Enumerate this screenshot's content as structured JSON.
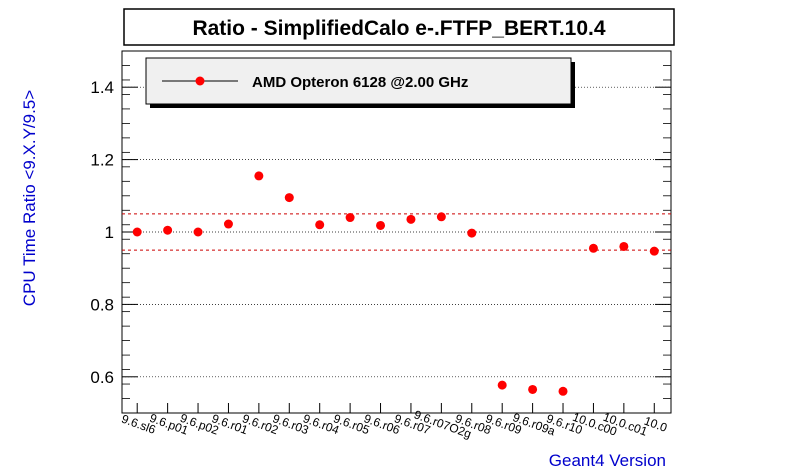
{
  "chart_data": {
    "type": "scatter",
    "title": "Ratio - SimplifiedCalo e-.FTFP_BERT.10.4",
    "xlabel": "Geant4 Version",
    "ylabel": "CPU Time Ratio <9.X.Y/9.5>",
    "ylim": [
      0.5,
      1.5
    ],
    "yticks": [
      "0.6",
      "0.8",
      "1",
      "1.2",
      "1.4"
    ],
    "grid": true,
    "reference_lines": [
      1.05,
      0.95
    ],
    "legend_position": "top-left",
    "categories": [
      "9.6.sl6",
      "9.6.p01",
      "9.6.p02",
      "9.6.r01",
      "9.6.r02",
      "9.6.r03",
      "9.6.r04",
      "9.6.r05",
      "9.6.r06",
      "9.6.r07",
      "9.6.r07O2g",
      "9.6.r08",
      "9.6.r09",
      "9.6.r09a",
      "9.6.r10",
      "10.0.c00",
      "10.0.c01",
      "10.0"
    ],
    "series": [
      {
        "name": "AMD Opteron 6128 @2.00 GHz",
        "color": "#ff0000",
        "values": [
          1.0,
          1.005,
          1.0,
          1.022,
          1.155,
          1.095,
          1.02,
          1.04,
          1.018,
          1.035,
          1.042,
          0.997,
          0.577,
          0.565,
          0.56,
          0.955,
          0.96,
          0.947
        ]
      }
    ],
    "colors": {
      "axis_title": "#0000cc",
      "marker": "#ff0000",
      "reference_line": "#cc0000",
      "legend_bg": "#f0f0f0"
    }
  }
}
